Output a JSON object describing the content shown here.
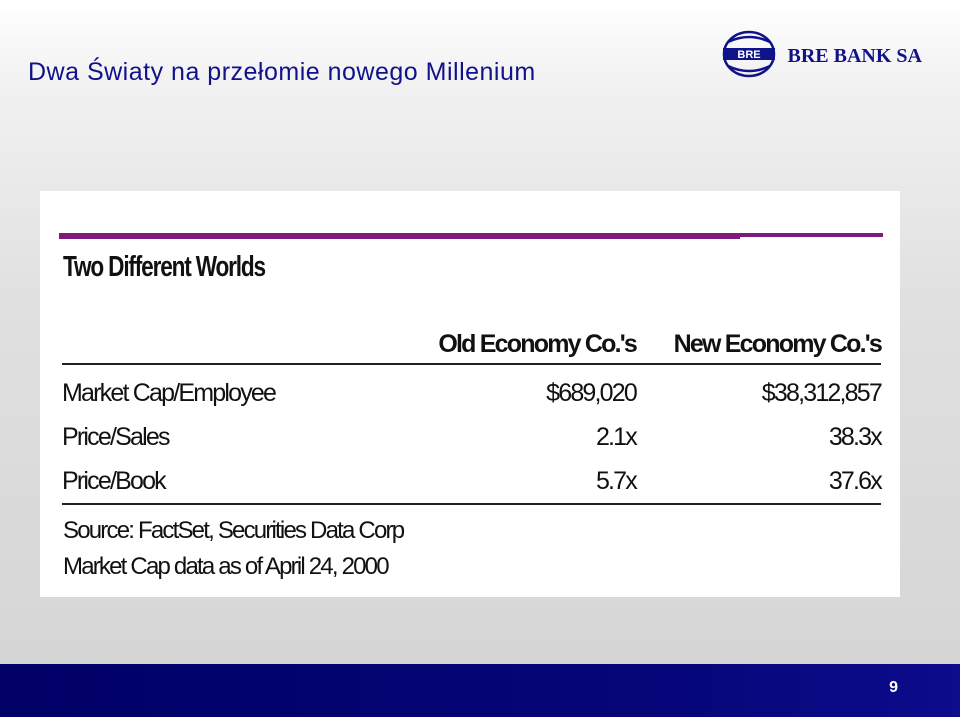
{
  "slide": {
    "title": "Dwa Światy na przełomie nowego Millenium",
    "page_number": "9"
  },
  "brand": {
    "logo_icon": "bre-bank-globe-logo",
    "name": "BRE BANK SA",
    "color": "#10128a"
  },
  "figure": {
    "heading": "Two Different Worlds",
    "rule_color": "#7d1a7e",
    "table": {
      "columns": [
        "",
        "Old Economy Co.'s",
        "New Economy Co.'s"
      ],
      "rows": [
        {
          "label": "Market Cap/Employee",
          "old": "$689,020",
          "new": "$38,312,857"
        },
        {
          "label": "Price/Sales",
          "old": "2.1x",
          "new": "38.3x"
        },
        {
          "label": "Price/Book",
          "old": "5.7x",
          "new": "37.6x"
        }
      ]
    },
    "source_lines": [
      "Source: FactSet, Securities Data Corp",
      "Market Cap data as of April 24, 2000"
    ]
  },
  "footer": {
    "color": "#000066"
  }
}
